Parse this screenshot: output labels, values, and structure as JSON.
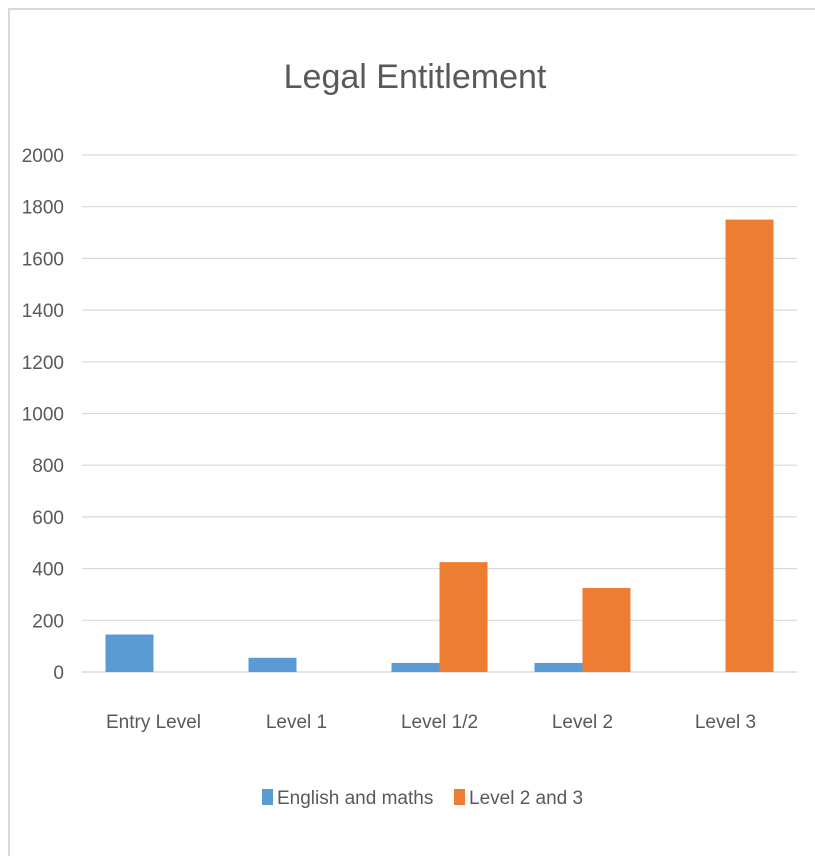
{
  "chart_data": {
    "type": "bar",
    "title": "Legal Entitlement",
    "xlabel": "",
    "ylabel": "",
    "categories": [
      "Entry Level",
      "Level 1",
      "Level 1/2",
      "Level 2",
      "Level 3"
    ],
    "series": [
      {
        "name": "English and maths",
        "color": "#5b9bd5",
        "values": [
          145,
          55,
          35,
          35,
          0
        ]
      },
      {
        "name": "Level 2 and 3",
        "color": "#ed7d31",
        "values": [
          0,
          0,
          425,
          325,
          1750
        ]
      }
    ],
    "ylim": [
      0,
      2000
    ],
    "yticks": [
      "0",
      "200",
      "400",
      "600",
      "800",
      "1000",
      "1200",
      "1400",
      "1600",
      "1800",
      "2000"
    ],
    "grid": true,
    "legend_position": "bottom"
  }
}
